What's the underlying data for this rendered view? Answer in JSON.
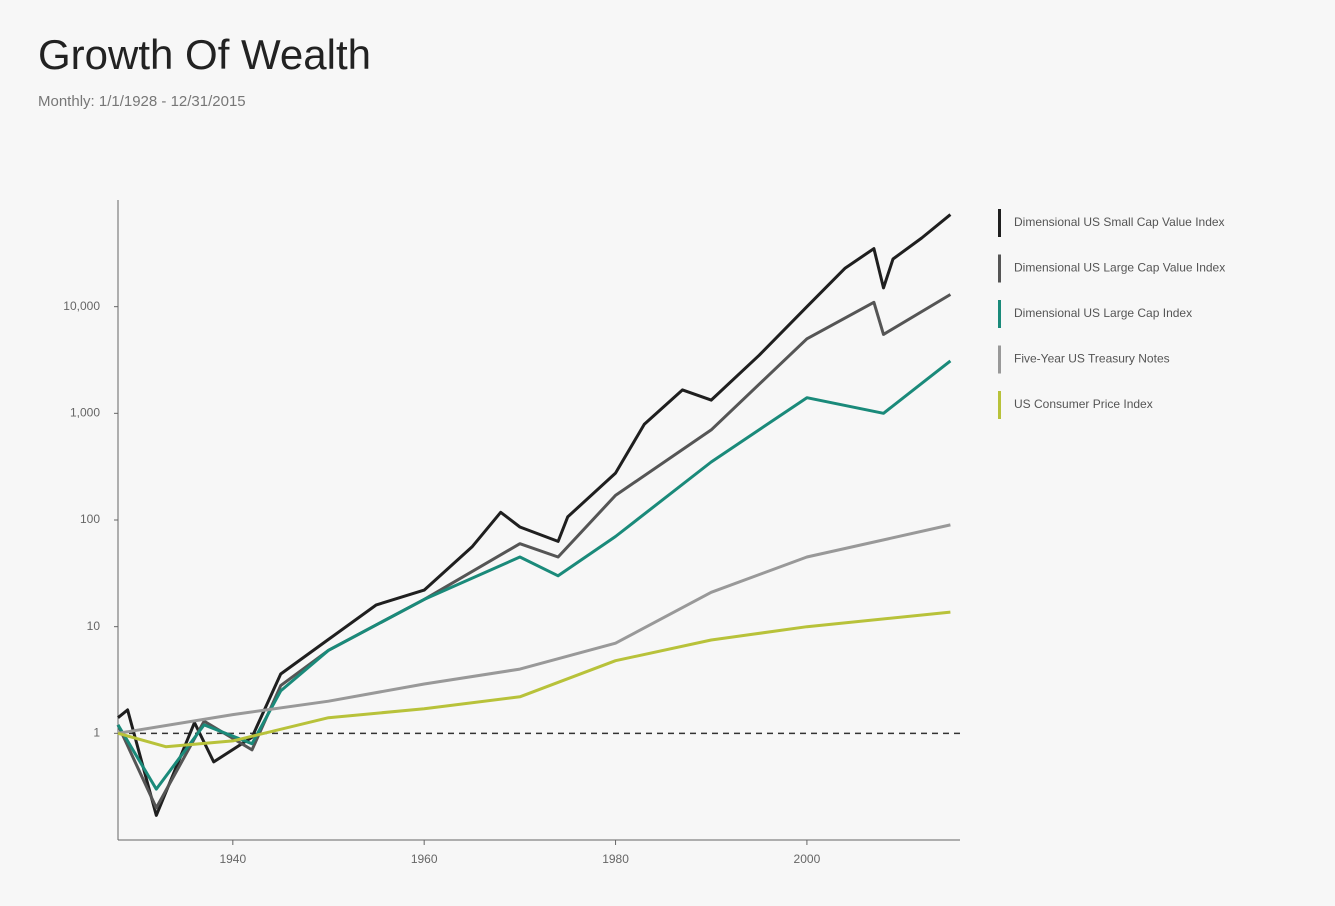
{
  "chart_data": {
    "type": "line",
    "title": "Growth Of Wealth",
    "subtitle": "Monthly: 1/1/1928 - 12/31/2015",
    "log_scale": true,
    "xlim": [
      1928,
      2016
    ],
    "xticks": [
      1940,
      1960,
      1980,
      2000
    ],
    "ylim": [
      0.1,
      100000
    ],
    "yticks": [
      1,
      10,
      100,
      {
        "value": 1000,
        "label": "1,000"
      },
      {
        "value": 10000,
        "label": "10,000"
      }
    ],
    "series": [
      {
        "name": "Dimensional US Small Cap Value Index",
        "color": "#1f1f1f",
        "x": [
          1928,
          1929,
          1932,
          1936,
          1938,
          1942,
          1945,
          1950,
          1955,
          1960,
          1965,
          1968,
          1970,
          1974,
          1975,
          1980,
          1983,
          1987,
          1990,
          1995,
          2000,
          2004,
          2007,
          2008,
          2009,
          2012,
          2015
        ],
        "values": [
          1.4,
          1.66,
          0.17,
          1.26,
          0.54,
          0.92,
          3.6,
          7.6,
          16,
          22,
          56,
          118,
          86,
          63,
          107,
          275,
          790,
          1660,
          1330,
          3500,
          10000,
          23000,
          35000,
          15000,
          28000,
          44000,
          73000
        ]
      },
      {
        "name": "Dimensional US Large Cap Value Index",
        "color": "#555555",
        "x": [
          1928,
          1932,
          1937,
          1942,
          1945,
          1950,
          1960,
          1970,
          1974,
          1980,
          1990,
          2000,
          2007,
          2008,
          2015
        ],
        "values": [
          1.2,
          0.2,
          1.3,
          0.7,
          2.8,
          6,
          18,
          60,
          45,
          170,
          700,
          5000,
          11000,
          5500,
          13000
        ]
      },
      {
        "name": "Dimensional US Large Cap Index",
        "color": "#1a8a7a",
        "x": [
          1928,
          1932,
          1937,
          1942,
          1945,
          1950,
          1960,
          1970,
          1974,
          1980,
          1990,
          2000,
          2008,
          2015
        ],
        "values": [
          1.2,
          0.3,
          1.2,
          0.8,
          2.5,
          6,
          18,
          45,
          30,
          70,
          350,
          1400,
          1000,
          3100
        ]
      },
      {
        "name": "Five-Year US Treasury Notes",
        "color": "#999999",
        "x": [
          1928,
          1940,
          1950,
          1960,
          1970,
          1980,
          1990,
          2000,
          2015
        ],
        "values": [
          1,
          1.5,
          2,
          2.9,
          4,
          7,
          21,
          45,
          90
        ]
      },
      {
        "name": "US Consumer Price Index",
        "color": "#b8c23a",
        "x": [
          1928,
          1933,
          1940,
          1950,
          1960,
          1970,
          1980,
          1990,
          2000,
          2015
        ],
        "values": [
          1,
          0.75,
          0.85,
          1.4,
          1.7,
          2.2,
          4.8,
          7.5,
          10,
          13.7
        ]
      }
    ]
  }
}
